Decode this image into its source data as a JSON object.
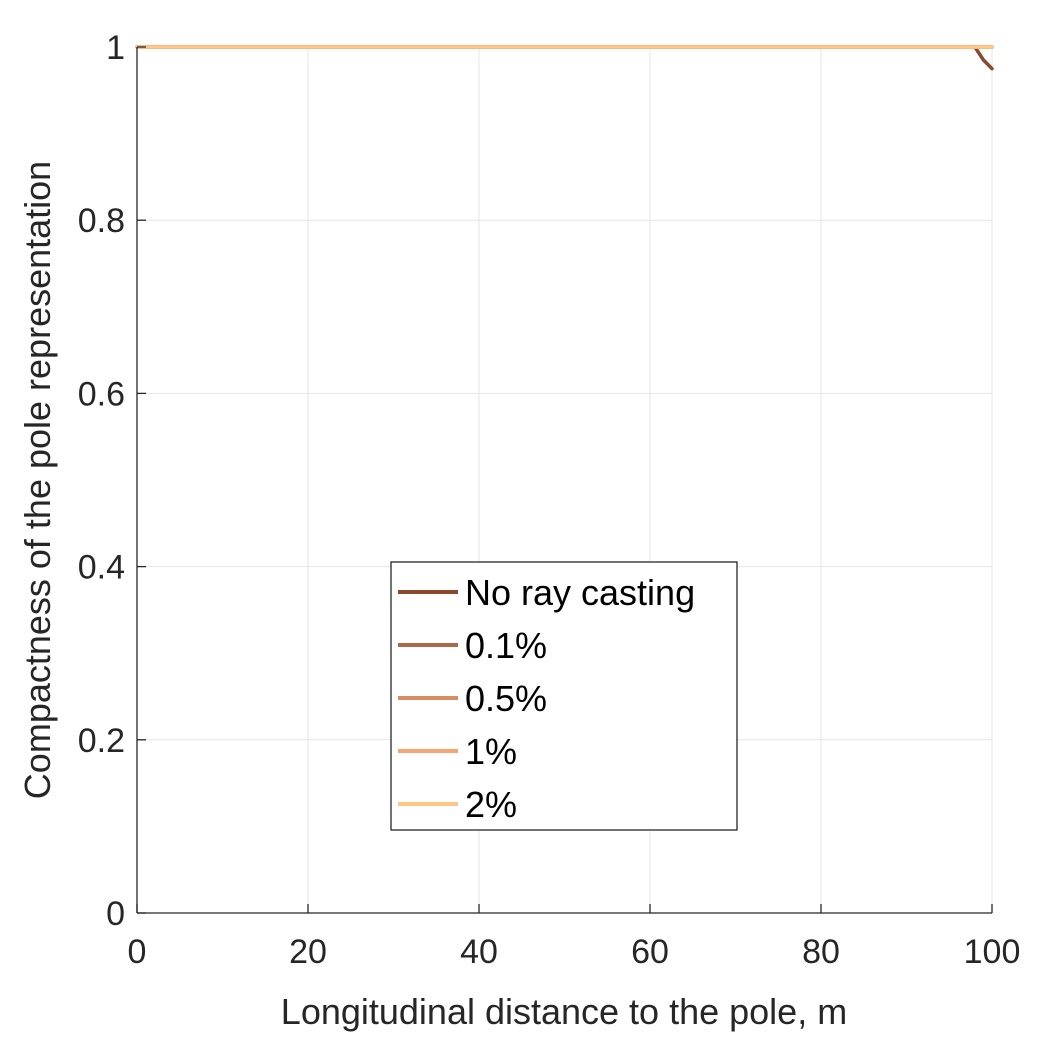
{
  "chart_data": {
    "type": "line",
    "xlabel": "Longitudinal distance to the pole, m",
    "ylabel": "Compactness of the pole representation",
    "xlim": [
      0,
      100
    ],
    "ylim": [
      0,
      1
    ],
    "xticks": [
      0,
      20,
      40,
      60,
      80,
      100
    ],
    "yticks": [
      0,
      0.2,
      0.4,
      0.6,
      0.8,
      1
    ],
    "xtick_labels": [
      "0",
      "20",
      "40",
      "60",
      "80",
      "100"
    ],
    "ytick_labels": [
      "0",
      "0.2",
      "0.4",
      "0.6",
      "0.8",
      "1"
    ],
    "grid": true,
    "legend_position": "center-bottom",
    "series": [
      {
        "name": "No ray casting",
        "color": "#8B4A2E",
        "x": [
          0,
          10,
          20,
          30,
          40,
          50,
          60,
          70,
          80,
          90,
          98,
          99,
          100
        ],
        "y": [
          1,
          1,
          1,
          1,
          1,
          1,
          1,
          1,
          1,
          1,
          1,
          0.985,
          0.975
        ]
      },
      {
        "name": "0.1%",
        "color": "#A8684A",
        "x": [
          0,
          100
        ],
        "y": [
          1,
          1
        ]
      },
      {
        "name": "0.5%",
        "color": "#D98B62",
        "x": [
          0,
          100
        ],
        "y": [
          1,
          1
        ]
      },
      {
        "name": "1%",
        "color": "#F5A673",
        "x": [
          0,
          100
        ],
        "y": [
          1,
          1
        ]
      },
      {
        "name": "2%",
        "color": "#FFC685",
        "x": [
          0,
          100
        ],
        "y": [
          1,
          1
        ]
      }
    ]
  }
}
